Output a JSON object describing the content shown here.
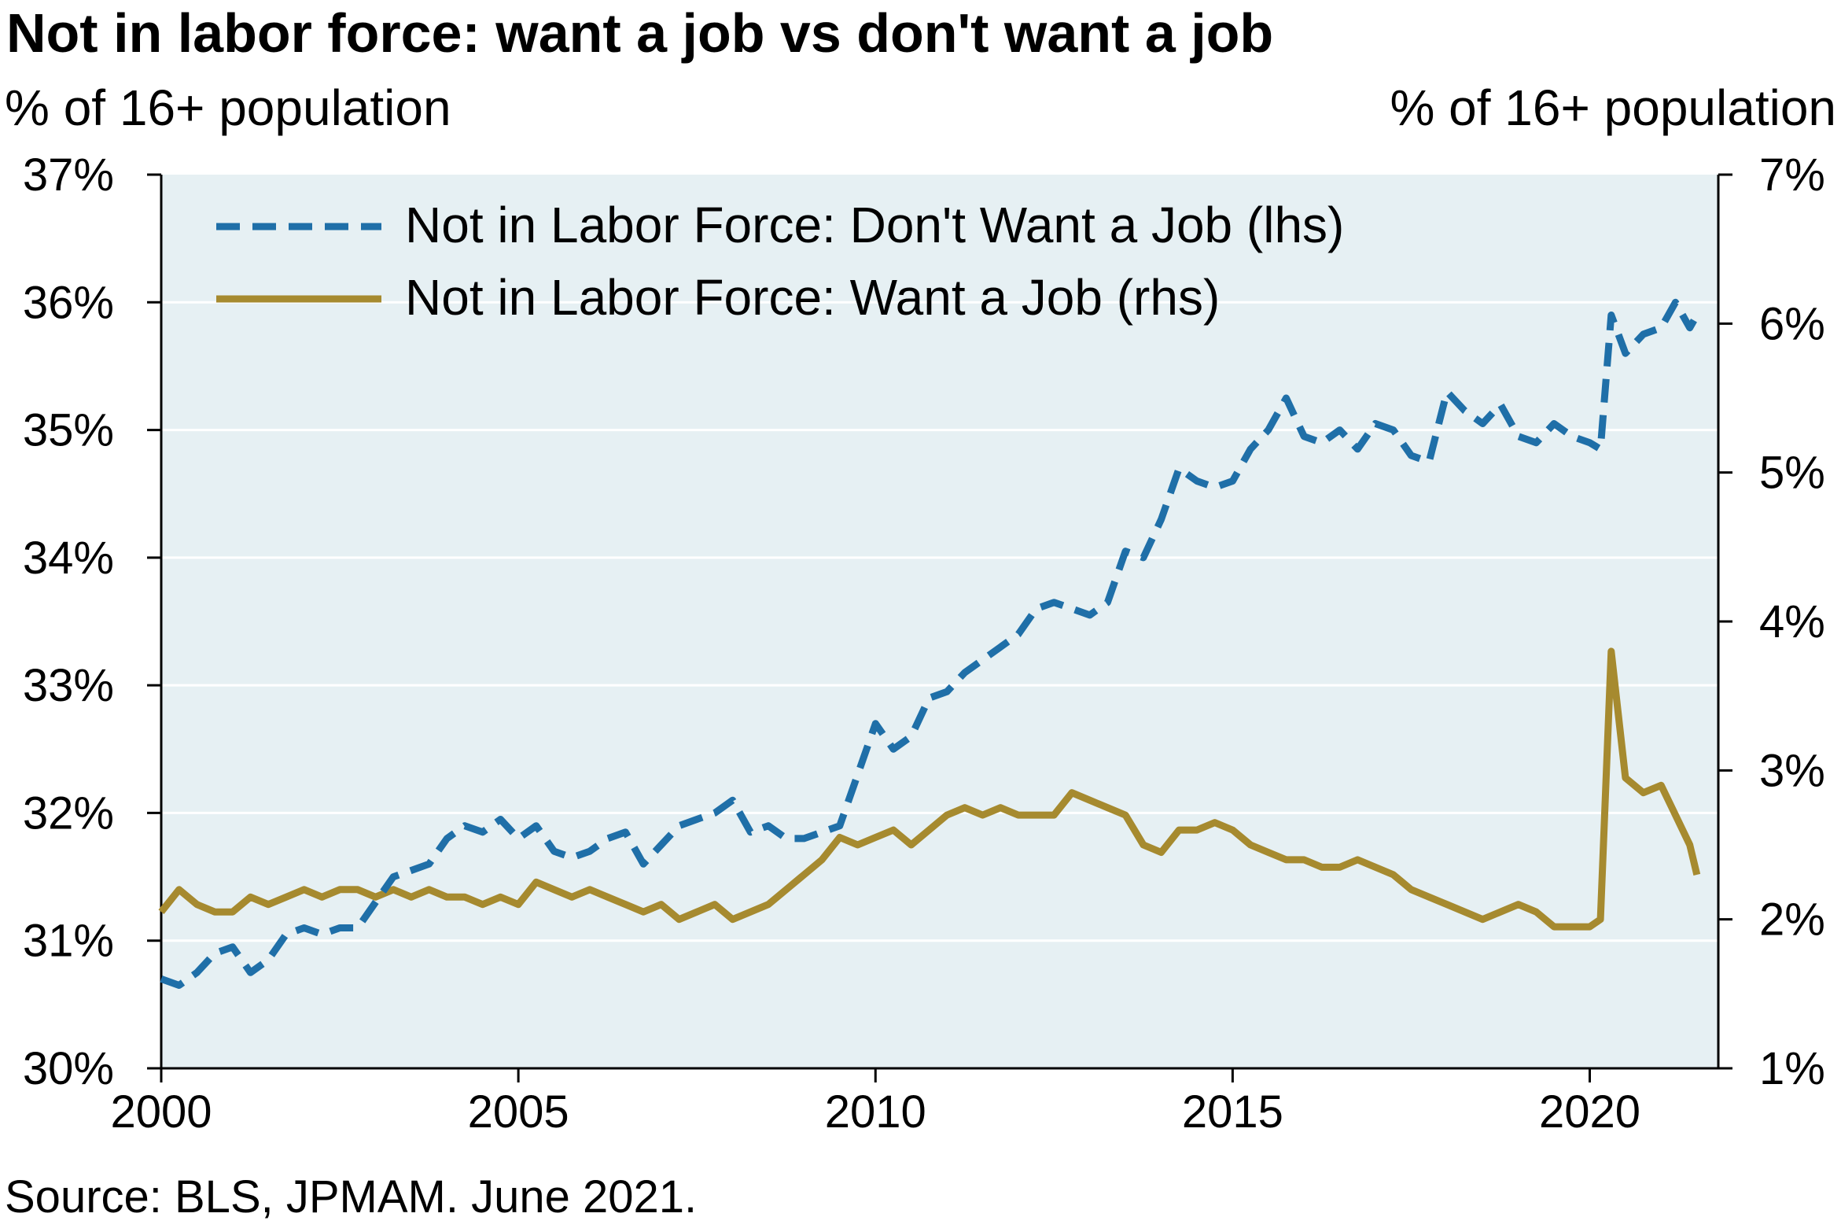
{
  "header": {
    "title": "Not in labor force: want a job vs don't want a job",
    "left_unit": "% of 16+ population",
    "right_unit": "% of 16+ population"
  },
  "footer": {
    "source": "Source: BLS, JPMAM. June 2021."
  },
  "colors": {
    "dont_want": "#1f6fa8",
    "want": "#a68a2f",
    "plot_bg": "#e6f0f3",
    "grid": "#ffffff"
  },
  "chart_data": {
    "type": "line",
    "grid": true,
    "legend_placement": "top-left",
    "x_ticks": [
      "2000",
      "2005",
      "2010",
      "2015",
      "2020"
    ],
    "xlim": [
      2000,
      2021.8
    ],
    "y_left": {
      "ticks": [
        "30%",
        "31%",
        "32%",
        "33%",
        "34%",
        "35%",
        "36%",
        "37%"
      ],
      "ylim": [
        30,
        37
      ]
    },
    "y_right": {
      "ticks": [
        "1%",
        "2%",
        "3%",
        "4%",
        "5%",
        "6%",
        "7%"
      ],
      "ylim": [
        1,
        7
      ]
    },
    "series": [
      {
        "name": "Not in Labor Force: Don't Want a Job (lhs)",
        "axis": "left",
        "style": "dashed",
        "points": [
          [
            2000.0,
            30.7
          ],
          [
            2000.25,
            30.65
          ],
          [
            2000.5,
            30.75
          ],
          [
            2000.75,
            30.9
          ],
          [
            2001.0,
            30.95
          ],
          [
            2001.25,
            30.75
          ],
          [
            2001.5,
            30.85
          ],
          [
            2001.75,
            31.05
          ],
          [
            2002.0,
            31.1
          ],
          [
            2002.25,
            31.05
          ],
          [
            2002.5,
            31.1
          ],
          [
            2002.75,
            31.1
          ],
          [
            2003.0,
            31.3
          ],
          [
            2003.25,
            31.5
          ],
          [
            2003.5,
            31.55
          ],
          [
            2003.75,
            31.6
          ],
          [
            2004.0,
            31.8
          ],
          [
            2004.25,
            31.9
          ],
          [
            2004.5,
            31.85
          ],
          [
            2004.75,
            31.95
          ],
          [
            2005.0,
            31.8
          ],
          [
            2005.25,
            31.9
          ],
          [
            2005.5,
            31.7
          ],
          [
            2005.75,
            31.65
          ],
          [
            2006.0,
            31.7
          ],
          [
            2006.25,
            31.8
          ],
          [
            2006.5,
            31.85
          ],
          [
            2006.75,
            31.6
          ],
          [
            2007.0,
            31.75
          ],
          [
            2007.25,
            31.9
          ],
          [
            2007.5,
            31.95
          ],
          [
            2007.75,
            32.0
          ],
          [
            2008.0,
            32.1
          ],
          [
            2008.25,
            31.85
          ],
          [
            2008.5,
            31.9
          ],
          [
            2008.75,
            31.8
          ],
          [
            2009.0,
            31.8
          ],
          [
            2009.25,
            31.85
          ],
          [
            2009.5,
            31.9
          ],
          [
            2009.75,
            32.3
          ],
          [
            2010.0,
            32.7
          ],
          [
            2010.25,
            32.5
          ],
          [
            2010.5,
            32.6
          ],
          [
            2010.75,
            32.9
          ],
          [
            2011.0,
            32.95
          ],
          [
            2011.25,
            33.1
          ],
          [
            2011.5,
            33.2
          ],
          [
            2011.75,
            33.3
          ],
          [
            2012.0,
            33.4
          ],
          [
            2012.25,
            33.6
          ],
          [
            2012.5,
            33.65
          ],
          [
            2012.75,
            33.6
          ],
          [
            2013.0,
            33.55
          ],
          [
            2013.25,
            33.65
          ],
          [
            2013.5,
            34.05
          ],
          [
            2013.75,
            34.0
          ],
          [
            2014.0,
            34.3
          ],
          [
            2014.25,
            34.7
          ],
          [
            2014.5,
            34.6
          ],
          [
            2014.75,
            34.55
          ],
          [
            2015.0,
            34.6
          ],
          [
            2015.25,
            34.85
          ],
          [
            2015.5,
            35.0
          ],
          [
            2015.75,
            35.25
          ],
          [
            2016.0,
            34.95
          ],
          [
            2016.25,
            34.9
          ],
          [
            2016.5,
            35.0
          ],
          [
            2016.75,
            34.85
          ],
          [
            2017.0,
            35.05
          ],
          [
            2017.25,
            35.0
          ],
          [
            2017.5,
            34.8
          ],
          [
            2017.75,
            34.75
          ],
          [
            2018.0,
            35.3
          ],
          [
            2018.25,
            35.15
          ],
          [
            2018.5,
            35.05
          ],
          [
            2018.75,
            35.2
          ],
          [
            2019.0,
            34.95
          ],
          [
            2019.25,
            34.9
          ],
          [
            2019.5,
            35.05
          ],
          [
            2019.75,
            34.95
          ],
          [
            2020.0,
            34.9
          ],
          [
            2020.15,
            34.85
          ],
          [
            2020.3,
            35.9
          ],
          [
            2020.5,
            35.6
          ],
          [
            2020.75,
            35.75
          ],
          [
            2021.0,
            35.8
          ],
          [
            2021.2,
            36.0
          ],
          [
            2021.4,
            35.8
          ],
          [
            2021.5,
            35.9
          ]
        ]
      },
      {
        "name": "Not in Labor Force: Want a Job (rhs)",
        "axis": "right",
        "style": "solid",
        "points": [
          [
            2000.0,
            2.05
          ],
          [
            2000.25,
            2.2
          ],
          [
            2000.5,
            2.1
          ],
          [
            2000.75,
            2.05
          ],
          [
            2001.0,
            2.05
          ],
          [
            2001.25,
            2.15
          ],
          [
            2001.5,
            2.1
          ],
          [
            2001.75,
            2.15
          ],
          [
            2002.0,
            2.2
          ],
          [
            2002.25,
            2.15
          ],
          [
            2002.5,
            2.2
          ],
          [
            2002.75,
            2.2
          ],
          [
            2003.0,
            2.15
          ],
          [
            2003.25,
            2.2
          ],
          [
            2003.5,
            2.15
          ],
          [
            2003.75,
            2.2
          ],
          [
            2004.0,
            2.15
          ],
          [
            2004.25,
            2.15
          ],
          [
            2004.5,
            2.1
          ],
          [
            2004.75,
            2.15
          ],
          [
            2005.0,
            2.1
          ],
          [
            2005.25,
            2.25
          ],
          [
            2005.5,
            2.2
          ],
          [
            2005.75,
            2.15
          ],
          [
            2006.0,
            2.2
          ],
          [
            2006.25,
            2.15
          ],
          [
            2006.5,
            2.1
          ],
          [
            2006.75,
            2.05
          ],
          [
            2007.0,
            2.1
          ],
          [
            2007.25,
            2.0
          ],
          [
            2007.5,
            2.05
          ],
          [
            2007.75,
            2.1
          ],
          [
            2008.0,
            2.0
          ],
          [
            2008.25,
            2.05
          ],
          [
            2008.5,
            2.1
          ],
          [
            2008.75,
            2.2
          ],
          [
            2009.0,
            2.3
          ],
          [
            2009.25,
            2.4
          ],
          [
            2009.5,
            2.55
          ],
          [
            2009.75,
            2.5
          ],
          [
            2010.0,
            2.55
          ],
          [
            2010.25,
            2.6
          ],
          [
            2010.5,
            2.5
          ],
          [
            2010.75,
            2.6
          ],
          [
            2011.0,
            2.7
          ],
          [
            2011.25,
            2.75
          ],
          [
            2011.5,
            2.7
          ],
          [
            2011.75,
            2.75
          ],
          [
            2012.0,
            2.7
          ],
          [
            2012.25,
            2.7
          ],
          [
            2012.5,
            2.7
          ],
          [
            2012.75,
            2.85
          ],
          [
            2013.0,
            2.8
          ],
          [
            2013.25,
            2.75
          ],
          [
            2013.5,
            2.7
          ],
          [
            2013.75,
            2.5
          ],
          [
            2014.0,
            2.45
          ],
          [
            2014.25,
            2.6
          ],
          [
            2014.5,
            2.6
          ],
          [
            2014.75,
            2.65
          ],
          [
            2015.0,
            2.6
          ],
          [
            2015.25,
            2.5
          ],
          [
            2015.5,
            2.45
          ],
          [
            2015.75,
            2.4
          ],
          [
            2016.0,
            2.4
          ],
          [
            2016.25,
            2.35
          ],
          [
            2016.5,
            2.35
          ],
          [
            2016.75,
            2.4
          ],
          [
            2017.0,
            2.35
          ],
          [
            2017.25,
            2.3
          ],
          [
            2017.5,
            2.2
          ],
          [
            2017.75,
            2.15
          ],
          [
            2018.0,
            2.1
          ],
          [
            2018.25,
            2.05
          ],
          [
            2018.5,
            2.0
          ],
          [
            2018.75,
            2.05
          ],
          [
            2019.0,
            2.1
          ],
          [
            2019.25,
            2.05
          ],
          [
            2019.5,
            1.95
          ],
          [
            2019.75,
            1.95
          ],
          [
            2020.0,
            1.95
          ],
          [
            2020.15,
            2.0
          ],
          [
            2020.3,
            3.8
          ],
          [
            2020.5,
            2.95
          ],
          [
            2020.75,
            2.85
          ],
          [
            2021.0,
            2.9
          ],
          [
            2021.2,
            2.7
          ],
          [
            2021.4,
            2.5
          ],
          [
            2021.5,
            2.3
          ]
        ]
      }
    ]
  }
}
